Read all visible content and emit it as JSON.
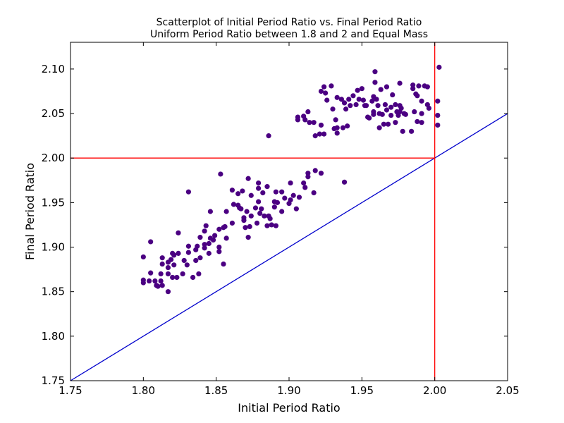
{
  "chart_data": {
    "type": "scatter",
    "title": "Scatterplot of Initial Period Ratio vs. Final Period Ratio",
    "subtitle": "Uniform Period Ratio between 1.8 and 2 and Equal Mass",
    "xlabel": "Initial Period Ratio",
    "ylabel": "Final Period Ratio",
    "xlim": [
      1.75,
      2.05
    ],
    "ylim": [
      1.75,
      2.13
    ],
    "x_ticks": [
      "1.75",
      "1.80",
      "1.85",
      "1.90",
      "1.95",
      "2.00",
      "2.05"
    ],
    "y_ticks": [
      "1.75",
      "1.80",
      "1.85",
      "1.90",
      "1.95",
      "2.00",
      "2.05",
      "2.10"
    ],
    "grid": false,
    "point_color": "#4b0082",
    "reference_lines": [
      {
        "kind": "diagonal",
        "from": [
          1.75,
          1.75
        ],
        "to": [
          2.05,
          2.05
        ],
        "color": "#0000cc"
      },
      {
        "kind": "horizontal",
        "y": 2.0,
        "x_range": [
          1.75,
          2.0
        ],
        "color": "#ff0000"
      },
      {
        "kind": "vertical",
        "x": 2.0,
        "color": "#ff0000"
      }
    ],
    "series": [
      {
        "points": [
          [
            1.8,
            1.863
          ],
          [
            1.8,
            1.86
          ],
          [
            1.8,
            1.889
          ],
          [
            1.804,
            1.862
          ],
          [
            1.805,
            1.871
          ],
          [
            1.805,
            1.906
          ],
          [
            1.808,
            1.862
          ],
          [
            1.809,
            1.857
          ],
          [
            1.81,
            1.856
          ],
          [
            1.812,
            1.862
          ],
          [
            1.812,
            1.87
          ],
          [
            1.813,
            1.857
          ],
          [
            1.813,
            1.881
          ],
          [
            1.813,
            1.888
          ],
          [
            1.817,
            1.85
          ],
          [
            1.817,
            1.87
          ],
          [
            1.817,
            1.877
          ],
          [
            1.817,
            1.883
          ],
          [
            1.819,
            1.886
          ],
          [
            1.82,
            1.893
          ],
          [
            1.82,
            1.866
          ],
          [
            1.821,
            1.88
          ],
          [
            1.821,
            1.891
          ],
          [
            1.823,
            1.866
          ],
          [
            1.824,
            1.893
          ],
          [
            1.824,
            1.916
          ],
          [
            1.827,
            1.87
          ],
          [
            1.828,
            1.885
          ],
          [
            1.83,
            1.88
          ],
          [
            1.831,
            1.894
          ],
          [
            1.831,
            1.901
          ],
          [
            1.831,
            1.962
          ],
          [
            1.834,
            1.866
          ],
          [
            1.836,
            1.885
          ],
          [
            1.836,
            1.897
          ],
          [
            1.837,
            1.901
          ],
          [
            1.838,
            1.87
          ],
          [
            1.839,
            1.888
          ],
          [
            1.839,
            1.911
          ],
          [
            1.842,
            1.903
          ],
          [
            1.842,
            1.899
          ],
          [
            1.842,
            1.918
          ],
          [
            1.843,
            1.924
          ],
          [
            1.845,
            1.893
          ],
          [
            1.845,
            1.904
          ],
          [
            1.846,
            1.91
          ],
          [
            1.846,
            1.94
          ],
          [
            1.848,
            1.908
          ],
          [
            1.849,
            1.913
          ],
          [
            1.852,
            1.895
          ],
          [
            1.852,
            1.9
          ],
          [
            1.852,
            1.92
          ],
          [
            1.853,
            1.982
          ],
          [
            1.855,
            1.881
          ],
          [
            1.855,
            1.922
          ],
          [
            1.856,
            1.923
          ],
          [
            1.857,
            1.94
          ],
          [
            1.857,
            1.91
          ],
          [
            1.861,
            1.927
          ],
          [
            1.861,
            1.964
          ],
          [
            1.862,
            1.948
          ],
          [
            1.865,
            1.96
          ],
          [
            1.865,
            1.947
          ],
          [
            1.866,
            1.944
          ],
          [
            1.867,
            1.943
          ],
          [
            1.868,
            1.963
          ],
          [
            1.869,
            1.933
          ],
          [
            1.869,
            1.93
          ],
          [
            1.87,
            1.922
          ],
          [
            1.871,
            1.94
          ],
          [
            1.872,
            1.977
          ],
          [
            1.872,
            1.911
          ],
          [
            1.873,
            1.923
          ],
          [
            1.874,
            1.958
          ],
          [
            1.874,
            1.935
          ],
          [
            1.877,
            1.944
          ],
          [
            1.878,
            1.927
          ],
          [
            1.879,
            1.966
          ],
          [
            1.879,
            1.972
          ],
          [
            1.879,
            1.951
          ],
          [
            1.88,
            1.938
          ],
          [
            1.881,
            1.943
          ],
          [
            1.882,
            1.961
          ],
          [
            1.883,
            1.935
          ],
          [
            1.885,
            1.924
          ],
          [
            1.885,
            1.968
          ],
          [
            1.886,
            1.935
          ],
          [
            1.887,
            1.932
          ],
          [
            1.888,
            1.925
          ],
          [
            1.89,
            1.945
          ],
          [
            1.89,
            1.951
          ],
          [
            1.891,
            1.924
          ],
          [
            1.891,
            1.962
          ],
          [
            1.892,
            1.95
          ],
          [
            1.895,
            1.94
          ],
          [
            1.895,
            1.962
          ],
          [
            1.897,
            1.955
          ],
          [
            1.9,
            1.949
          ],
          [
            1.901,
            1.972
          ],
          [
            1.901,
            1.953
          ],
          [
            1.903,
            1.958
          ],
          [
            1.905,
            1.943
          ],
          [
            1.907,
            1.956
          ],
          [
            1.91,
            1.972
          ],
          [
            1.911,
            1.967
          ],
          [
            1.913,
            1.979
          ],
          [
            1.913,
            1.983
          ],
          [
            1.917,
            1.961
          ],
          [
            1.918,
            1.986
          ],
          [
            1.922,
            1.983
          ],
          [
            1.938,
            1.973
          ],
          [
            1.886,
            2.025
          ],
          [
            1.906,
            2.046
          ],
          [
            1.906,
            2.043
          ],
          [
            1.91,
            2.047
          ],
          [
            1.911,
            2.043
          ],
          [
            1.913,
            2.052
          ],
          [
            1.914,
            2.04
          ],
          [
            1.917,
            2.04
          ],
          [
            1.918,
            2.025
          ],
          [
            1.921,
            2.027
          ],
          [
            1.922,
            2.037
          ],
          [
            1.922,
            2.075
          ],
          [
            1.924,
            2.027
          ],
          [
            1.924,
            2.08
          ],
          [
            1.925,
            2.073
          ],
          [
            1.926,
            2.065
          ],
          [
            1.929,
            2.081
          ],
          [
            1.93,
            2.055
          ],
          [
            1.931,
            2.033
          ],
          [
            1.932,
            2.043
          ],
          [
            1.933,
            2.068
          ],
          [
            1.933,
            2.034
          ],
          [
            1.933,
            2.028
          ],
          [
            1.936,
            2.066
          ],
          [
            1.937,
            2.034
          ],
          [
            1.938,
            2.062
          ],
          [
            1.939,
            2.055
          ],
          [
            1.94,
            2.036
          ],
          [
            1.941,
            2.066
          ],
          [
            1.942,
            2.059
          ],
          [
            1.944,
            2.07
          ],
          [
            1.946,
            2.06
          ],
          [
            1.947,
            2.076
          ],
          [
            1.948,
            2.066
          ],
          [
            1.95,
            2.078
          ],
          [
            1.951,
            2.065
          ],
          [
            1.952,
            2.059
          ],
          [
            1.953,
            2.059
          ],
          [
            1.954,
            2.046
          ],
          [
            1.955,
            2.045
          ],
          [
            1.957,
            2.064
          ],
          [
            1.958,
            2.052
          ],
          [
            1.958,
            2.069
          ],
          [
            1.958,
            2.049
          ],
          [
            1.959,
            2.085
          ],
          [
            1.959,
            2.097
          ],
          [
            1.96,
            2.066
          ],
          [
            1.961,
            2.059
          ],
          [
            1.962,
            2.05
          ],
          [
            1.962,
            2.034
          ],
          [
            1.963,
            2.077
          ],
          [
            1.964,
            2.049
          ],
          [
            1.965,
            2.038
          ],
          [
            1.966,
            2.06
          ],
          [
            1.967,
            2.054
          ],
          [
            1.967,
            2.08
          ],
          [
            1.968,
            2.038
          ],
          [
            1.97,
            2.057
          ],
          [
            1.97,
            2.048
          ],
          [
            1.971,
            2.071
          ],
          [
            1.973,
            2.06
          ],
          [
            1.973,
            2.04
          ],
          [
            1.974,
            2.052
          ],
          [
            1.975,
            2.048
          ],
          [
            1.976,
            2.084
          ],
          [
            1.976,
            2.052
          ],
          [
            1.976,
            2.059
          ],
          [
            1.977,
            2.056
          ],
          [
            1.978,
            2.03
          ],
          [
            1.979,
            2.05
          ],
          [
            1.98,
            2.049
          ],
          [
            1.984,
            2.03
          ],
          [
            1.985,
            2.078
          ],
          [
            1.985,
            2.082
          ],
          [
            1.986,
            2.052
          ],
          [
            1.987,
            2.072
          ],
          [
            1.988,
            2.07
          ],
          [
            1.988,
            2.041
          ],
          [
            1.989,
            2.081
          ],
          [
            1.991,
            2.064
          ],
          [
            1.991,
            2.05
          ],
          [
            1.991,
            2.04
          ],
          [
            1.993,
            2.081
          ],
          [
            1.995,
            2.06
          ],
          [
            1.995,
            2.08
          ],
          [
            1.996,
            2.056
          ],
          [
            2.002,
            2.064
          ],
          [
            2.002,
            2.048
          ],
          [
            2.002,
            2.037
          ],
          [
            2.003,
            2.102
          ]
        ]
      }
    ]
  }
}
